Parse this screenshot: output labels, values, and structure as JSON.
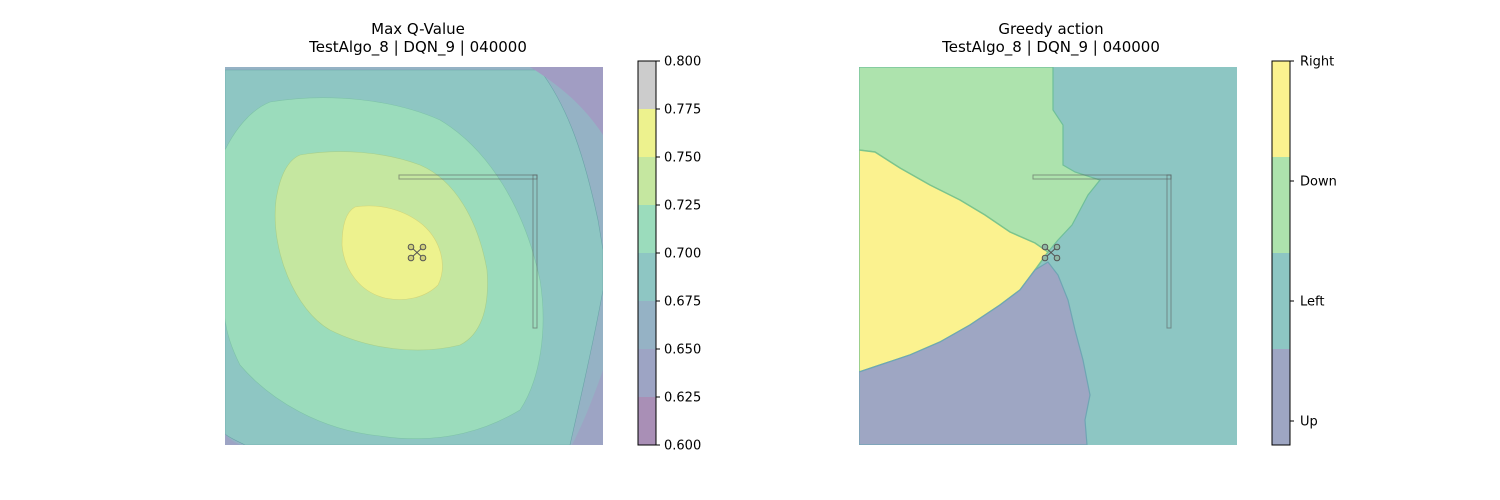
{
  "chart_data": [
    {
      "type": "heatmap",
      "title": "Max Q-Value",
      "subtitle": "TestAlgo_8 | DQN_9 | 040000",
      "colorbar": {
        "levels": [
          0.6,
          0.625,
          0.65,
          0.675,
          0.7,
          0.725,
          0.75,
          0.775,
          0.8
        ],
        "tick_labels": [
          "0.600",
          "0.625",
          "0.650",
          "0.675",
          "0.700",
          "0.725",
          "0.750",
          "0.775",
          "0.800"
        ],
        "colors": [
          "#a98fb6",
          "#9da4c4",
          "#95b2c5",
          "#8ec6c3",
          "#9bdcbc",
          "#c5e7a0",
          "#edf28e"
        ]
      },
      "peak_value": 0.79,
      "grid": false
    },
    {
      "type": "heatmap",
      "title": "Greedy action",
      "subtitle": "TestAlgo_8 | DQN_9 | 040000",
      "categories": [
        "Up",
        "Left",
        "Down",
        "Right"
      ],
      "colors": {
        "Up": "#9ea6c3",
        "Left": "#8dc6c3",
        "Down": "#ade3ad",
        "Right": "#fbf28f"
      },
      "grid": false
    }
  ]
}
